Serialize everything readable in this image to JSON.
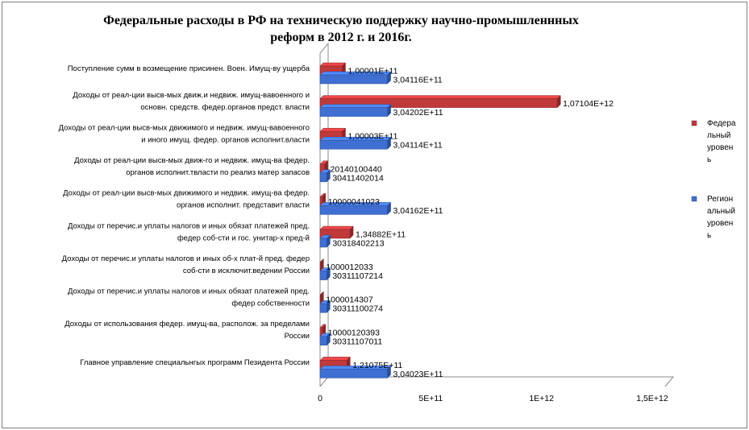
{
  "chart_data": {
    "type": "bar",
    "orientation": "horizontal",
    "style": "3d-clustered",
    "title": "Федеральные расходы в РФ на техническую поддержку научно-промышленнных\nреформ  в 2012 г. и 2016г.",
    "categories": [
      [
        "Поступление сумм в возмещение присинен. Воен. Имущ-ву ущерба"
      ],
      [
        "Доходы от реал-ции высв-мых движ.и недвиж. имущ-вавоенного и",
        "основн. средств. федер.органов предст. власти"
      ],
      [
        "Доходы от реал-ции высв-мых движимого и недвиж. имущ-вавоенного",
        "и иного имущ. федер. органов исполнит.власти"
      ],
      [
        "Доходы от реал-ции высв-мых движ-го и недвиж. имущ-ва федер.",
        "органов исполнит.твласти по реализ матер запасов"
      ],
      [
        "Доходы от реал-ции высв-мых движимого и недвиж. имущ-ва федер.",
        "органов исполнит. представит власти"
      ],
      [
        "Доходы от перечис.и уплаты налогов и иных обязат платежей пред.",
        "федер  соб-сти    и гос. унитар-х пред-й"
      ],
      [
        "Доходы от перечис.и уплаты налогов и иных об-х плат-й пред. федер",
        "соб-сти в исключит.ведении России"
      ],
      [
        "Доходы от перечис.и уплаты налогов и иных обязат платежей пред.",
        "федер  собственности"
      ],
      [
        "Доходы от использования федер. имущ-ва, располож. за пределами",
        "России"
      ],
      [
        "Главное управление специальнгых программ Пезидента России"
      ]
    ],
    "series": [
      {
        "name": "Федеральный уровень",
        "legend_lines": [
          "Федера",
          "льный",
          "уровен",
          "ь"
        ],
        "color": "#c0393b",
        "values": [
          100001000000,
          1071040000000,
          100003000000,
          20140100440,
          10000041023,
          134882000000,
          1000012033,
          1000014307,
          10000120393,
          121075000000
        ],
        "labels": [
          "1,00001E+11",
          "1,07104E+12",
          "1,00003E+11",
          "20140100440",
          "10000041023",
          "1,34882E+11",
          "1000012033",
          "1000014307",
          "10000120393",
          "1,21075E+11"
        ]
      },
      {
        "name": "Региональный уровень",
        "legend_lines": [
          "Регион",
          "альный",
          "уровен",
          "ь"
        ],
        "color": "#3f6fd2",
        "values": [
          304116000000,
          304202000000,
          304114000000,
          30411402014,
          304162000000,
          30318402213,
          30311107214,
          30311100274,
          30311107011,
          304023000000
        ],
        "labels": [
          "3,04116E+11",
          "3,04202E+11",
          "3,04114E+11",
          "30411402014",
          "3,04162E+11",
          "30318402213",
          "30311107214",
          "30311100274",
          "30311107011",
          "3,04023E+11"
        ]
      }
    ],
    "xlim": [
      0,
      1500000000000
    ],
    "xticks": [
      0,
      500000000000,
      1000000000000,
      1500000000000
    ],
    "xtick_labels": [
      "0",
      "5E+11",
      "1E+12",
      "1,5E+12"
    ],
    "grid": false,
    "legend_position": "right"
  }
}
